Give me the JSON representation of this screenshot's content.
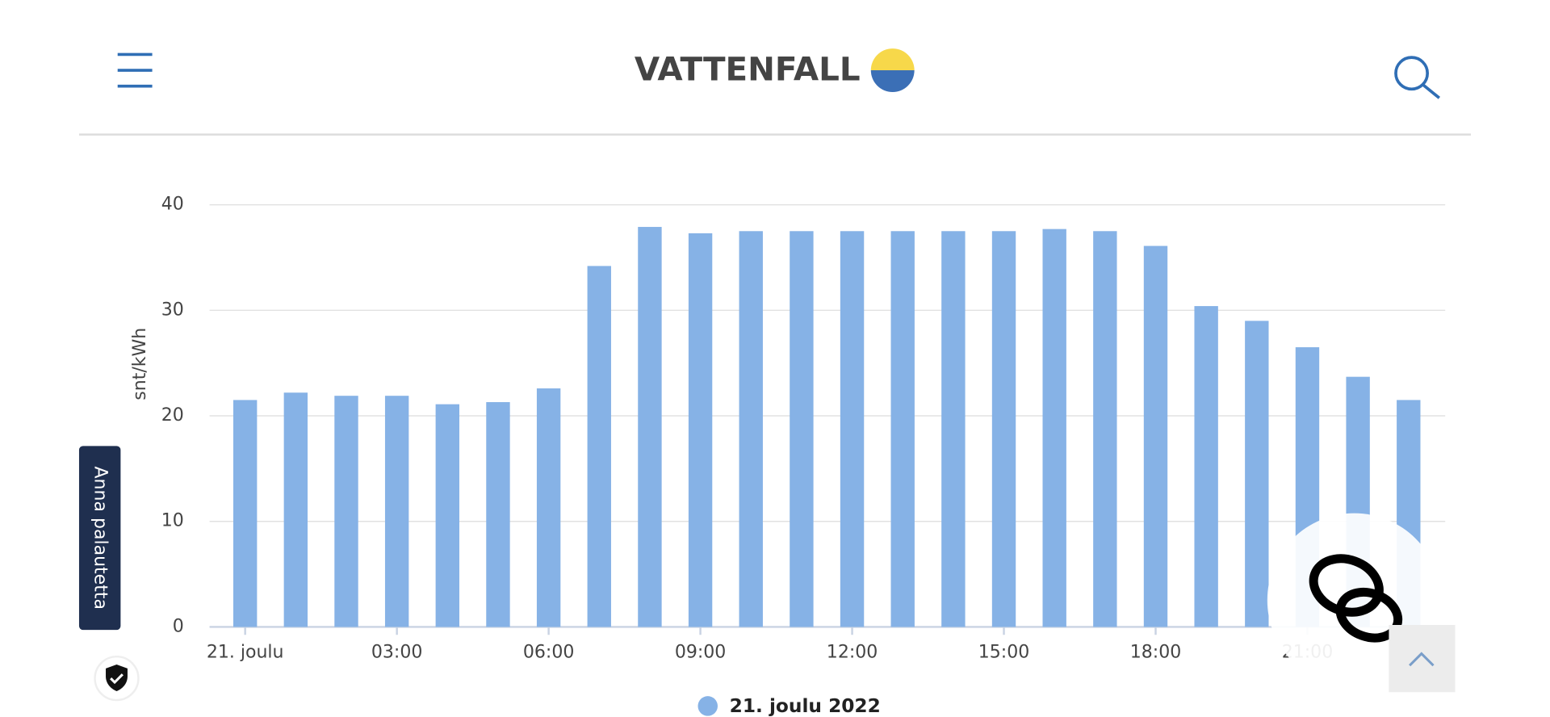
{
  "header": {
    "logo": "VATTENFALL"
  },
  "feedback_button": "Anna palautetta",
  "chart_data": {
    "type": "bar",
    "y_label": "snt/kWh",
    "categories": [
      "21. joulu",
      null,
      null,
      "03:00",
      null,
      null,
      "06:00",
      null,
      null,
      "09:00",
      null,
      null,
      "12:00",
      null,
      null,
      "15:00",
      null,
      null,
      "18:00",
      null,
      null,
      "21:00",
      null,
      null
    ],
    "series": [
      {
        "name": "21. joulu 2022",
        "color": "#86b2e6",
        "values": [
          21.5,
          22.2,
          21.9,
          21.9,
          21.1,
          21.3,
          22.6,
          34.2,
          37.9,
          37.3,
          37.5,
          37.5,
          37.5,
          37.5,
          37.5,
          37.5,
          37.7,
          37.5,
          36.1,
          30.4,
          29.0,
          26.5,
          23.7,
          21.5
        ]
      }
    ],
    "ylim": [
      0,
      40
    ],
    "yticks": [
      0,
      10,
      20,
      30,
      40
    ],
    "grid": true
  }
}
